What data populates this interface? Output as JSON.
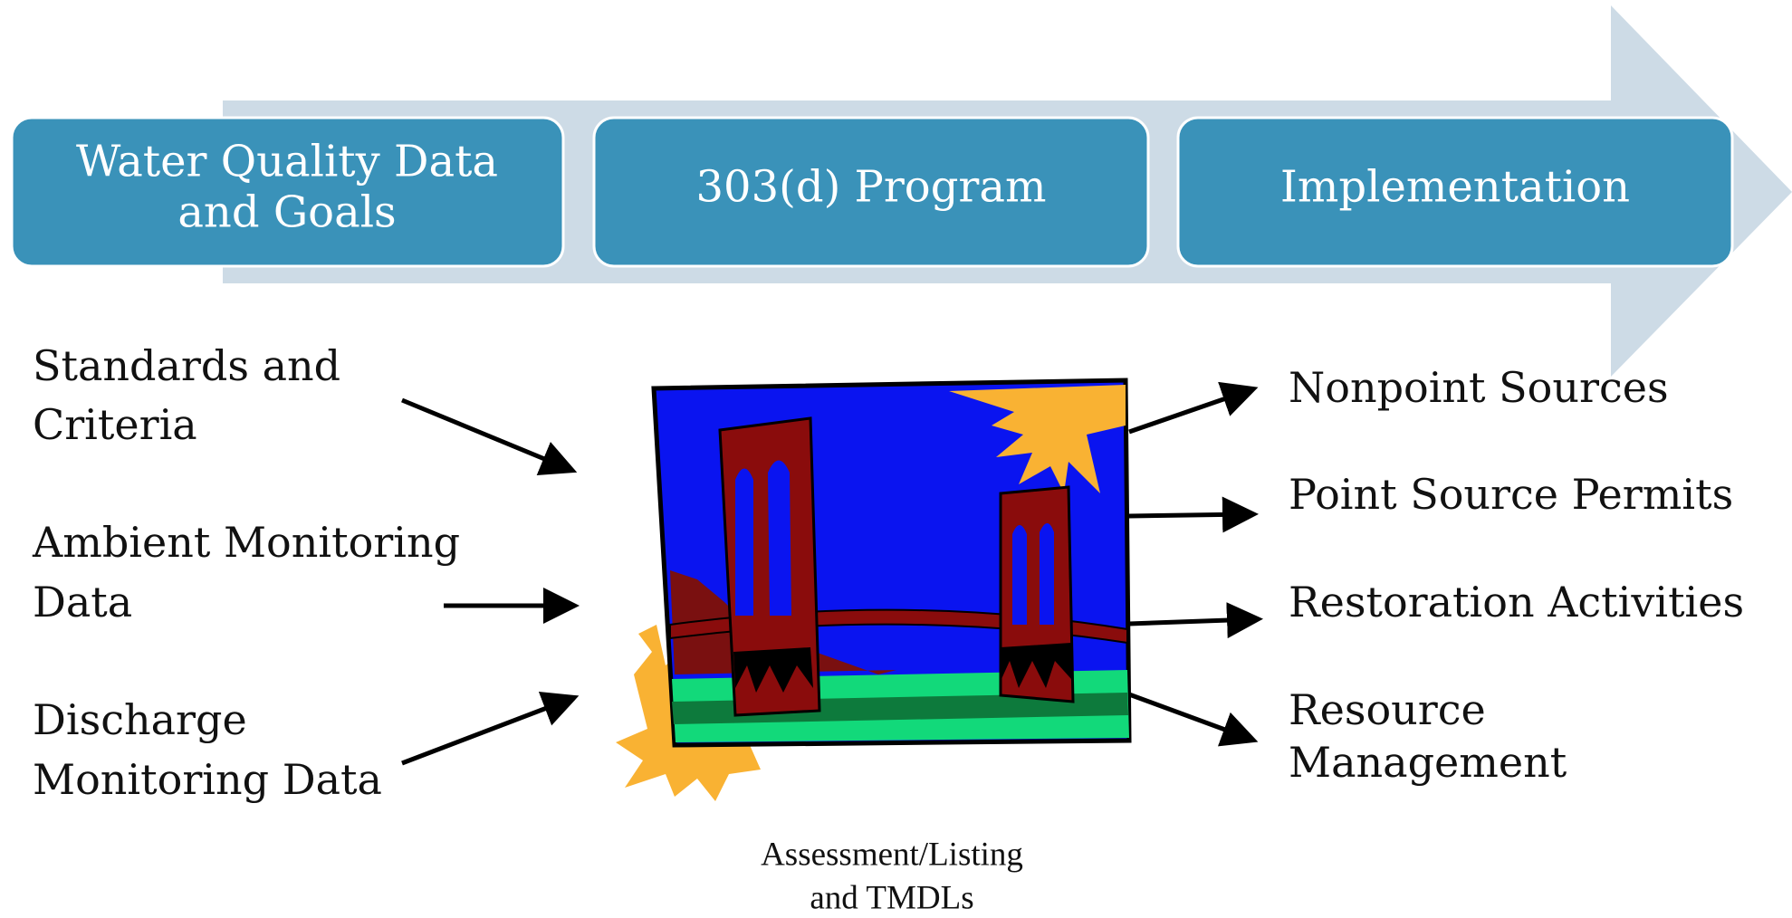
{
  "stages": [
    {
      "lines": [
        "Water Quality Data",
        "and Goals"
      ]
    },
    {
      "lines": [
        "303(d) Program"
      ]
    },
    {
      "lines": [
        "Implementation"
      ]
    }
  ],
  "inputs": [
    {
      "lines": [
        "Standards and",
        "Criteria"
      ]
    },
    {
      "lines": [
        "Ambient Monitoring",
        "Data"
      ]
    },
    {
      "lines": [
        "Discharge",
        "Monitoring Data"
      ]
    }
  ],
  "outputs": [
    {
      "lines": [
        "Nonpoint Sources"
      ]
    },
    {
      "lines": [
        "Point Source Permits"
      ]
    },
    {
      "lines": [
        "Restoration Activities"
      ]
    },
    {
      "lines": [
        "Resource",
        "Management"
      ]
    }
  ],
  "caption": {
    "lines": [
      "Assessment/Listing",
      "and TMDLs"
    ]
  }
}
